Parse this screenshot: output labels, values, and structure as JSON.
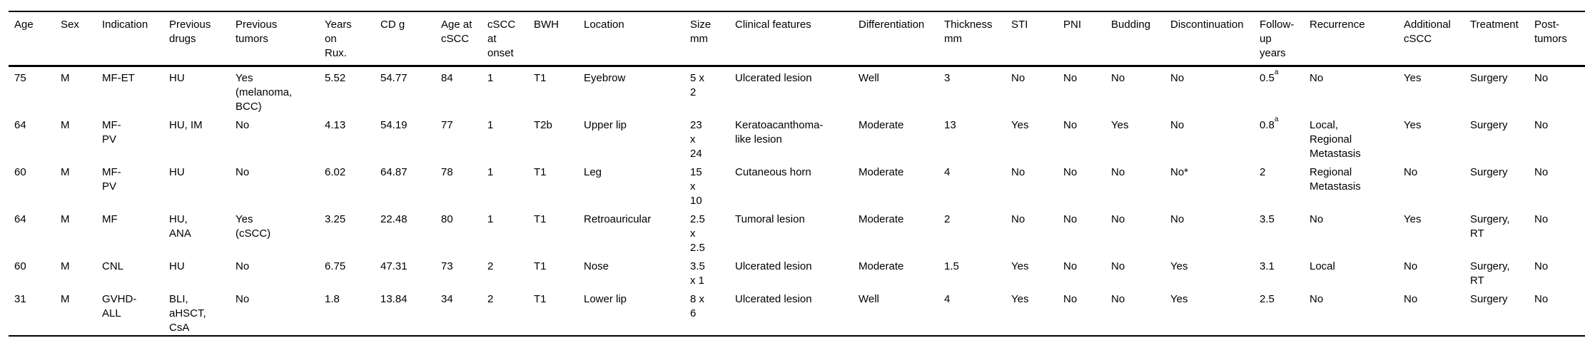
{
  "table": {
    "headers": [
      "Age",
      "Sex",
      "Indication",
      "Previous\ndrugs",
      "Previous\ntumors",
      "Years\non\nRux.",
      "CD g",
      "Age at\ncSCC",
      "cSCC\nat\nonset",
      "BWH",
      "Location",
      "Size\nmm",
      "Clinical features",
      "Differentiation",
      "Thickness\nmm",
      "STI",
      "PNI",
      "Budding",
      "Discontinuation",
      "Follow-\nup\nyears",
      "Recurrence",
      "Additional\ncSCC",
      "Treatment",
      "Post-\ntumors"
    ],
    "rows": [
      [
        "75",
        "M",
        "MF-ET",
        "HU",
        "Yes\n(melanoma,\nBCC)",
        "5.52",
        "54.77",
        "84",
        "1",
        "T1",
        "Eyebrow",
        "5 x\n2",
        "Ulcerated lesion",
        "Well",
        "3",
        "No",
        "No",
        "No",
        "No",
        {
          "text": "0.5",
          "sup": "a"
        },
        "No",
        "Yes",
        "Surgery",
        "No"
      ],
      [
        "64",
        "M",
        "MF-\nPV",
        "HU, IM",
        "No",
        "4.13",
        "54.19",
        "77",
        "1",
        "T2b",
        "Upper lip",
        "23\nx\n24",
        "Keratoacanthoma-\nlike lesion",
        "Moderate",
        "13",
        "Yes",
        "No",
        "Yes",
        "No",
        {
          "text": "0.8",
          "sup": "a"
        },
        "Local,\nRegional\nMetastasis",
        "Yes",
        "Surgery",
        "No"
      ],
      [
        "60",
        "M",
        "MF-\nPV",
        "HU",
        "No",
        "6.02",
        "64.87",
        "78",
        "1",
        "T1",
        "Leg",
        "15\nx\n10",
        "Cutaneous horn",
        "Moderate",
        "4",
        "No",
        "No",
        "No",
        "No*",
        "2",
        "Regional\nMetastasis",
        "No",
        "Surgery",
        "No"
      ],
      [
        "64",
        "M",
        "MF",
        "HU,\nANA",
        "Yes\n(cSCC)",
        "3.25",
        "22.48",
        "80",
        "1",
        "T1",
        "Retroauricular",
        "2.5\nx\n2.5",
        "Tumoral lesion",
        "Moderate",
        "2",
        "No",
        "No",
        "No",
        "No",
        "3.5",
        "No",
        "Yes",
        "Surgery,\nRT",
        "No"
      ],
      [
        "60",
        "M",
        "CNL",
        "HU",
        "No",
        "6.75",
        "47.31",
        "73",
        "2",
        "T1",
        "Nose",
        "3.5\nx 1",
        "Ulcerated lesion",
        "Moderate",
        "1.5",
        "Yes",
        "No",
        "No",
        "Yes",
        "3.1",
        "Local",
        "No",
        "Surgery,\nRT",
        "No"
      ],
      [
        "31",
        "M",
        "GVHD-\nALL",
        "BLI,\naHSCT,\nCsA",
        "No",
        "1.8",
        "13.84",
        "34",
        "2",
        "T1",
        "Lower lip",
        "8 x\n6",
        "Ulcerated lesion",
        "Well",
        "4",
        "Yes",
        "No",
        "No",
        "Yes",
        "2.5",
        "No",
        "No",
        "Surgery",
        "No"
      ]
    ],
    "colors": {
      "text": "#000000",
      "rule": "#000000",
      "background": "#ffffff"
    }
  }
}
